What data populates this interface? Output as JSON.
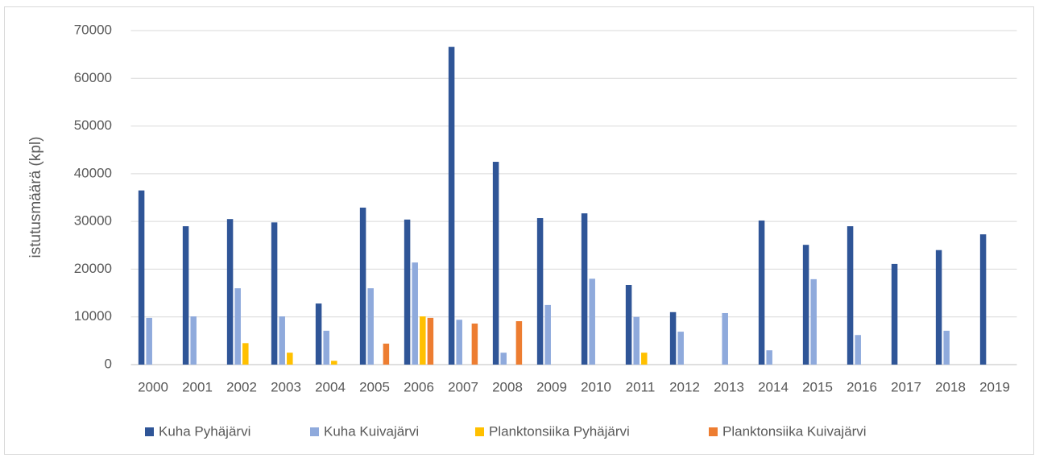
{
  "chart_data": {
    "type": "bar",
    "ylabel": "istutusmäärä (kpl)",
    "categories": [
      "2000",
      "2001",
      "2002",
      "2003",
      "2004",
      "2005",
      "2006",
      "2007",
      "2008",
      "2009",
      "2010",
      "2011",
      "2012",
      "2013",
      "2014",
      "2015",
      "2016",
      "2017",
      "2018",
      "2019"
    ],
    "series": [
      {
        "name": "Kuha Pyhäjärvi",
        "color": "#2f5597",
        "values": [
          36500,
          29000,
          30500,
          29800,
          12800,
          32900,
          30400,
          66600,
          42500,
          30700,
          31700,
          16700,
          11000,
          0,
          30200,
          25100,
          29000,
          21100,
          24000,
          27300
        ]
      },
      {
        "name": "Kuha Kuivajärvi",
        "color": "#8faadc",
        "values": [
          9800,
          10100,
          16000,
          10100,
          7100,
          16000,
          21400,
          9400,
          2500,
          12500,
          18000,
          10000,
          6900,
          10800,
          3000,
          17900,
          6200,
          0,
          7100,
          0
        ]
      },
      {
        "name": "Planktonsiika Pyhäjärvi",
        "color": "#ffc000",
        "values": [
          0,
          0,
          4500,
          2500,
          800,
          0,
          10100,
          0,
          0,
          0,
          0,
          2500,
          0,
          0,
          0,
          0,
          0,
          0,
          0,
          0
        ]
      },
      {
        "name": "Planktonsiika Kuivajärvi",
        "color": "#ed7d31",
        "values": [
          0,
          0,
          0,
          0,
          0,
          4400,
          9800,
          8600,
          9100,
          0,
          0,
          0,
          0,
          0,
          0,
          0,
          0,
          0,
          0,
          0
        ]
      }
    ],
    "ylim": [
      0,
      70000
    ],
    "yticks": [
      0,
      10000,
      20000,
      30000,
      40000,
      50000,
      60000,
      70000
    ],
    "grid": true,
    "legend": "bottom"
  }
}
